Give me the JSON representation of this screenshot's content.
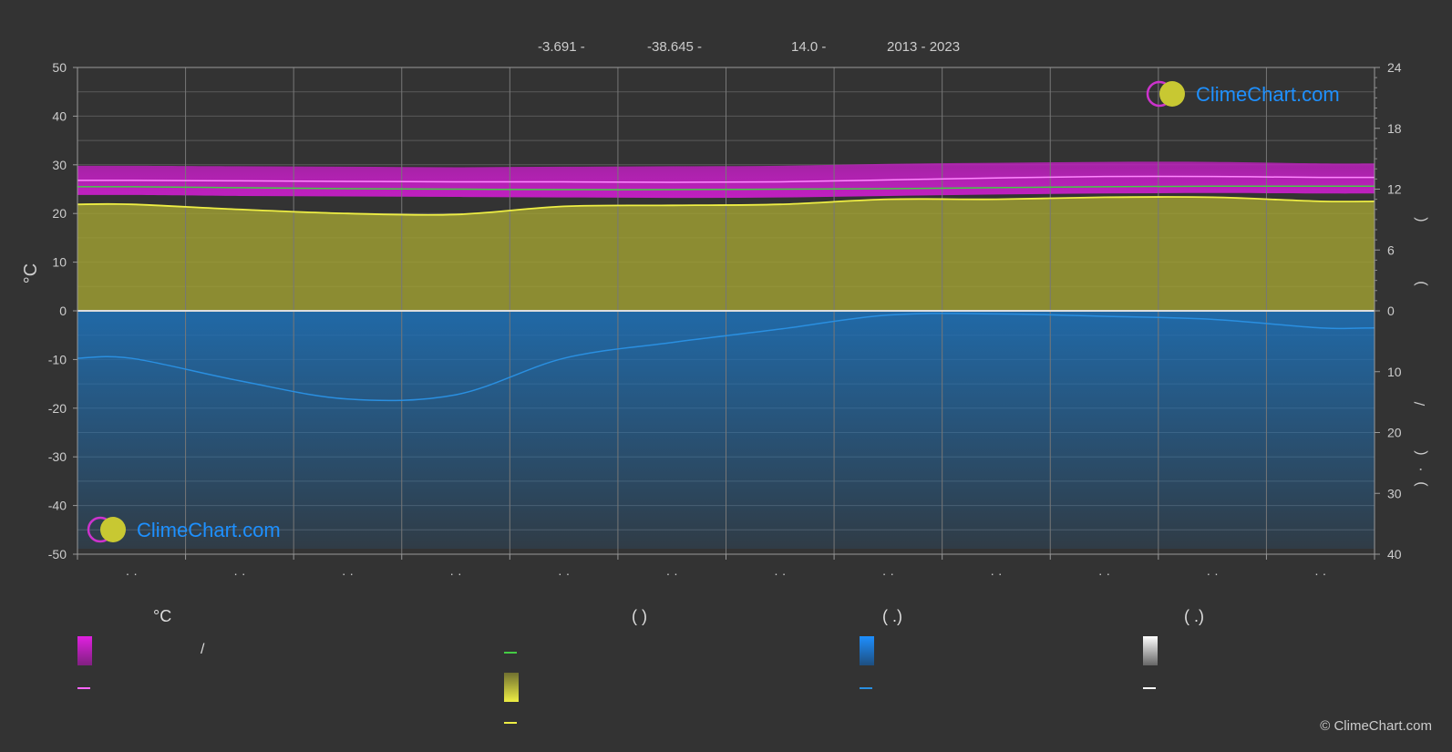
{
  "header": {
    "latitude": "-3.691 -",
    "longitude": "-38.645 -",
    "elevation": "14.0 -",
    "period": "2013 - 2023"
  },
  "watermark": "ClimeChart.com",
  "copyright": "© ClimeChart.com",
  "legend": {
    "col1_head": "°C",
    "col2_head": "(          )",
    "col3_head": "(   .)",
    "col4_head": "(   .)",
    "slash": "/"
  },
  "colors": {
    "background": "#333333",
    "temp_band": "#c81ec8",
    "temp_mean": "#ff66ff",
    "green_line": "#44cc44",
    "sun_fill": "#a0a032",
    "sun_line": "#eeee44",
    "precip": "#1e6fb4",
    "precip_line": "#2a8fe0",
    "snow_line": "#ffffff",
    "accent": "#1e90ff"
  },
  "chart_data": {
    "type": "area",
    "left_axis": {
      "label": "°C",
      "range": [
        -50,
        50
      ],
      "ticks": [
        "50",
        "40",
        "30",
        "20",
        "10",
        "0",
        "-10",
        "-20",
        "-30",
        "-40",
        "-50"
      ]
    },
    "right_axis_top": {
      "range": [
        0,
        24
      ],
      "ticks": [
        "24",
        "18",
        "12",
        "6",
        "0"
      ]
    },
    "right_axis_bottom": {
      "range": [
        0,
        40
      ],
      "ticks": [
        "10",
        "20",
        "30",
        "40"
      ]
    },
    "right_labels": [
      "(",
      ")",
      "/",
      "(",
      "·",
      ")"
    ],
    "months": 12,
    "x_labels": [
      "· ·",
      "· ·",
      "· ·",
      "· ·",
      "· ·",
      "· ·",
      "· ·",
      "· ·",
      "· ·",
      "· ·",
      "· ·",
      "· ·"
    ],
    "series": [
      {
        "key": "temp_max",
        "values": [
          29.8,
          29.7,
          29.6,
          29.5,
          29.6,
          29.7,
          29.8,
          30.2,
          30.4,
          30.6,
          30.6,
          30.3
        ]
      },
      {
        "key": "temp_min",
        "values": [
          23.8,
          23.6,
          23.5,
          23.4,
          23.3,
          23.2,
          23.3,
          23.6,
          23.9,
          24.1,
          24.2,
          24.1
        ]
      },
      {
        "key": "temp_mean",
        "values": [
          26.8,
          26.7,
          26.6,
          26.5,
          26.5,
          26.4,
          26.5,
          26.9,
          27.3,
          27.6,
          27.6,
          27.4
        ]
      },
      {
        "key": "green_line",
        "values": [
          25.5,
          25.3,
          25.1,
          25.0,
          24.9,
          24.9,
          25.0,
          25.1,
          25.3,
          25.5,
          25.6,
          25.6
        ]
      },
      {
        "key": "sunshine",
        "values": [
          10.5,
          10.0,
          9.6,
          9.5,
          10.3,
          10.4,
          10.5,
          11.0,
          11.0,
          11.2,
          11.2,
          10.8
        ]
      },
      {
        "key": "precip",
        "values": [
          7.8,
          11.5,
          14.5,
          13.8,
          7.8,
          5.2,
          3.0,
          0.7,
          0.5,
          0.9,
          1.4,
          2.8
        ]
      }
    ]
  }
}
